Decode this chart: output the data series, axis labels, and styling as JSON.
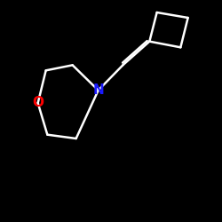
{
  "background_color": "#000000",
  "bond_color": "#ffffff",
  "N_color": "#1a1aff",
  "O_color": "#ff0000",
  "figsize": [
    2.5,
    2.5
  ],
  "dpi": 100,
  "lw": 1.8,
  "font_size": 11
}
